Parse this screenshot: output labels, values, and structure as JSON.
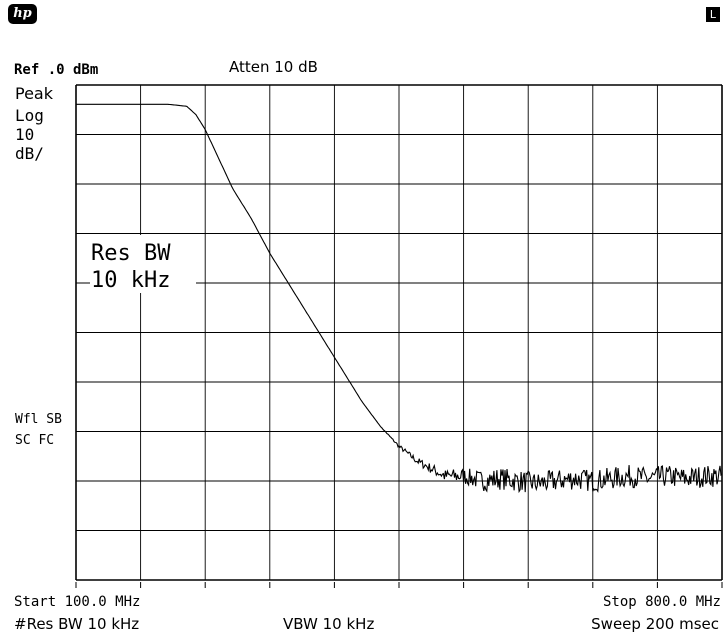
{
  "header": {
    "logo": "hp",
    "local_indicator": "L",
    "ref_level": "Ref .0 dBm",
    "attenuation": "Atten 10 dB"
  },
  "left_panel": {
    "detector": "Peak",
    "scale_type": "Log",
    "scale_value": "10",
    "scale_unit": "dB/",
    "status_line1": "Wfl SB",
    "status_line2": "SC FC"
  },
  "annotation": {
    "line1": "Res BW",
    "line2": "10 kHz"
  },
  "footer": {
    "start": "Start 100.0 MHz",
    "stop": "Stop 800.0 MHz",
    "res_bw": "#Res BW 10 kHz",
    "vbw": "VBW 10 kHz",
    "sweep": "Sweep 200 msec"
  },
  "chart_data": {
    "type": "line",
    "x_unit": "MHz",
    "y_unit": "dBm",
    "xlim": [
      100,
      800
    ],
    "ylim": [
      -100,
      0
    ],
    "grid": true,
    "x_divisions": 10,
    "y_divisions": 10,
    "series": [
      {
        "x": [
          100,
          170,
          200,
          220,
          230,
          240,
          250,
          260,
          270,
          280,
          290,
          300,
          310,
          320,
          330,
          340,
          350,
          360,
          370,
          380,
          390,
          400,
          410,
          420,
          430,
          440,
          450,
          460,
          470,
          480,
          490,
          500,
          520,
          540,
          560,
          580,
          600,
          620,
          640,
          660,
          680,
          700,
          720,
          740,
          760,
          780,
          800
        ],
        "y": [
          -3.9,
          -3.9,
          -3.9,
          -4.3,
          -6,
          -9,
          -13,
          -17,
          -21,
          -24,
          -27,
          -30.5,
          -34,
          -37,
          -40,
          -43,
          -46,
          -49,
          -52,
          -55,
          -58,
          -61,
          -64,
          -66.5,
          -69,
          -71,
          -73,
          -74.5,
          -76,
          -77,
          -78,
          -79,
          -79,
          -80,
          -79.5,
          -80,
          -80.5,
          -80,
          -79.5,
          -80,
          -79.5,
          -79,
          -79.5,
          -79,
          -79.5,
          -79,
          -79
        ]
      }
    ]
  }
}
